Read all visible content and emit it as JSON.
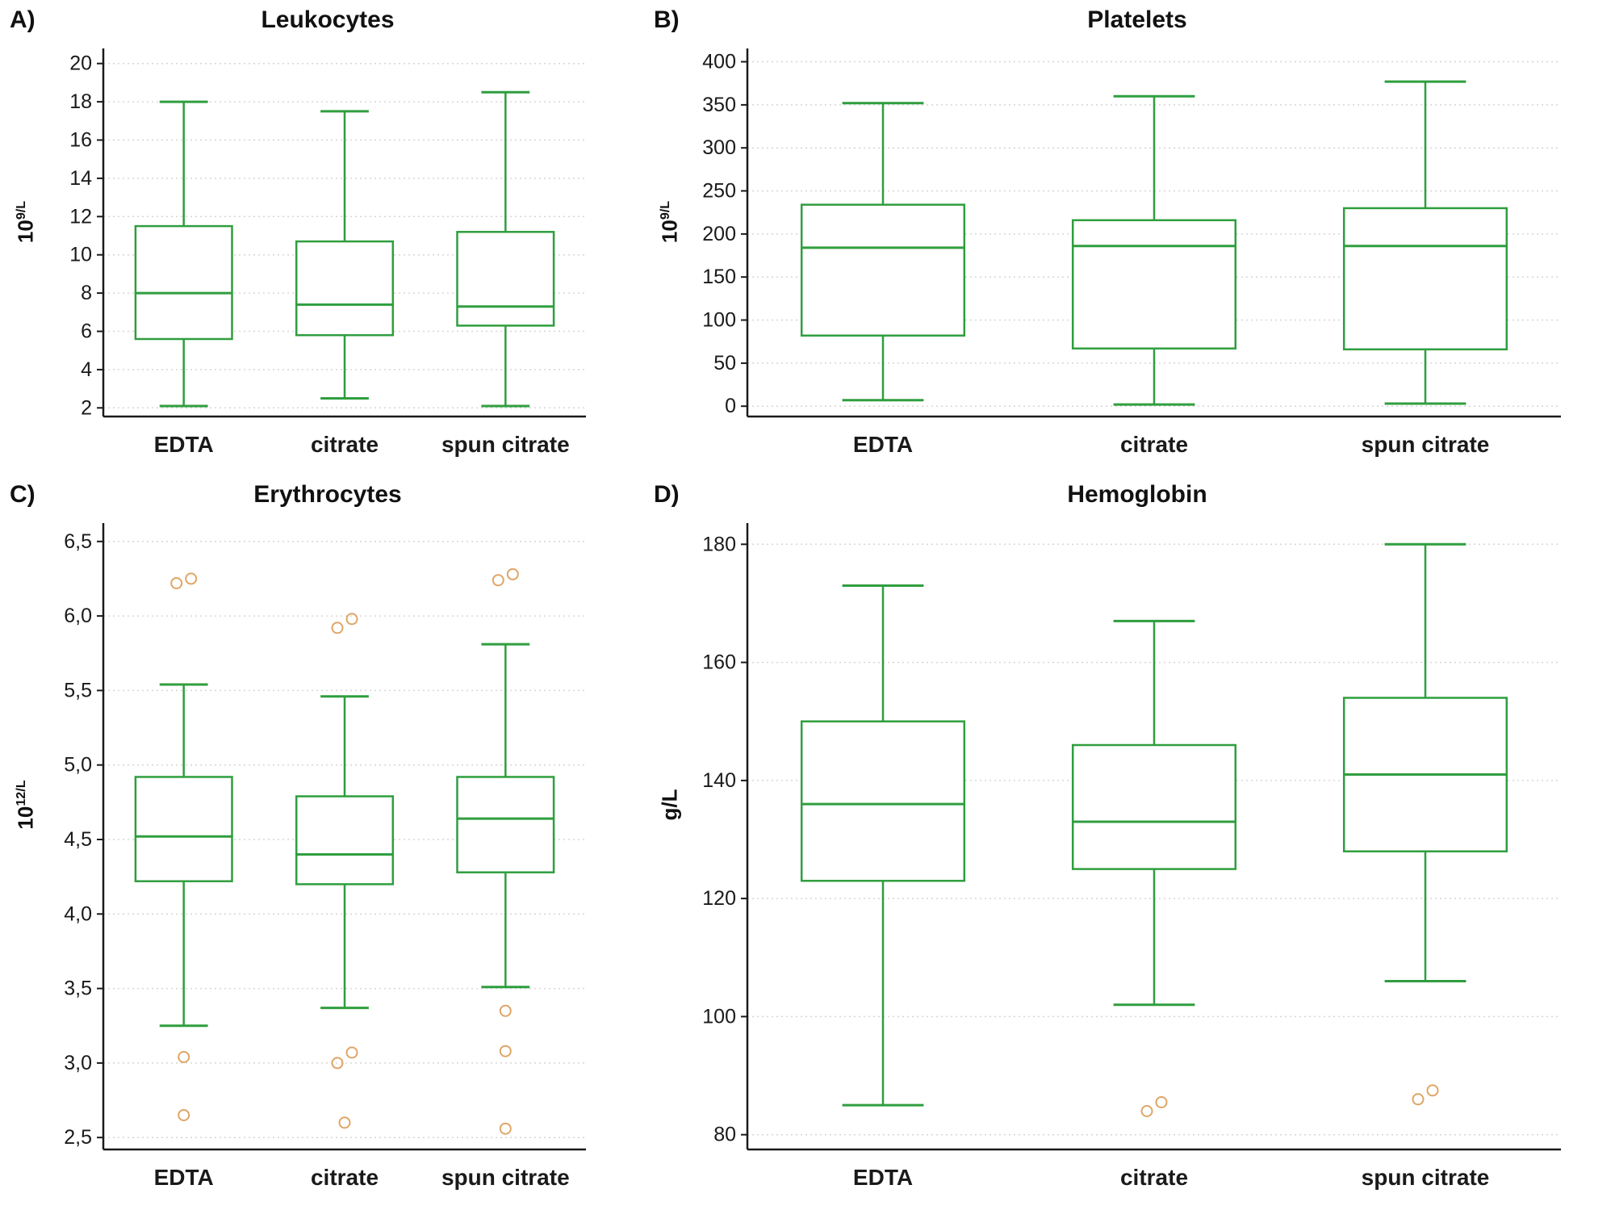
{
  "figure": {
    "background": "#ffffff"
  },
  "style": {
    "box_color": "#2f9e3e",
    "outlier_color": "#dfa566",
    "grid_color": "#d6d6d6",
    "axis_color": "#1a1a1a"
  },
  "chart_data": [
    {
      "type": "box",
      "panel_label": "A)",
      "title": "Leukocytes",
      "ylabel": {
        "base": "10",
        "sup": "9/L"
      },
      "ylim": [
        1.55,
        20.45
      ],
      "grid": true,
      "ticks": [
        {
          "value": 2,
          "label": "2"
        },
        {
          "value": 4,
          "label": "4"
        },
        {
          "value": 6,
          "label": "6"
        },
        {
          "value": 8,
          "label": "8"
        },
        {
          "value": 10,
          "label": "10"
        },
        {
          "value": 12,
          "label": "12"
        },
        {
          "value": 14,
          "label": "14"
        },
        {
          "value": 16,
          "label": "16"
        },
        {
          "value": 18,
          "label": "18"
        },
        {
          "value": 20,
          "label": "20"
        }
      ],
      "categories": [
        "EDTA",
        "citrate",
        "spun citrate"
      ],
      "series": [
        {
          "category": "EDTA",
          "low": 2.1,
          "q1": 5.6,
          "median": 8.0,
          "q3": 11.5,
          "high": 18.0,
          "outliers": []
        },
        {
          "category": "citrate",
          "low": 2.5,
          "q1": 5.8,
          "median": 7.4,
          "q3": 10.7,
          "high": 17.5,
          "outliers": []
        },
        {
          "category": "spun citrate",
          "low": 2.1,
          "q1": 6.3,
          "median": 7.3,
          "q3": 11.2,
          "high": 18.5,
          "outliers": []
        }
      ]
    },
    {
      "type": "box",
      "panel_label": "B)",
      "title": "Platelets",
      "ylabel": {
        "base": "10",
        "sup": "9/L"
      },
      "ylim": [
        -12,
        408
      ],
      "grid": true,
      "ticks": [
        {
          "value": 0,
          "label": "0"
        },
        {
          "value": 50,
          "label": "50"
        },
        {
          "value": 100,
          "label": "100"
        },
        {
          "value": 150,
          "label": "150"
        },
        {
          "value": 200,
          "label": "200"
        },
        {
          "value": 250,
          "label": "250"
        },
        {
          "value": 300,
          "label": "300"
        },
        {
          "value": 350,
          "label": "350"
        },
        {
          "value": 400,
          "label": "400"
        }
      ],
      "categories": [
        "EDTA",
        "citrate",
        "spun citrate"
      ],
      "series": [
        {
          "category": "EDTA",
          "low": 7,
          "q1": 82,
          "median": 184,
          "q3": 234,
          "high": 352,
          "outliers": []
        },
        {
          "category": "citrate",
          "low": 2,
          "q1": 67,
          "median": 186,
          "q3": 216,
          "high": 360,
          "outliers": []
        },
        {
          "category": "spun citrate",
          "low": 3,
          "q1": 66,
          "median": 186,
          "q3": 230,
          "high": 377,
          "outliers": []
        }
      ]
    },
    {
      "type": "box",
      "panel_label": "C)",
      "title": "Erythrocytes",
      "ylabel": {
        "base": "10",
        "sup": "12/L"
      },
      "ylim": [
        2.42,
        6.58
      ],
      "grid": true,
      "ticks": [
        {
          "value": 2.5,
          "label": "2,5"
        },
        {
          "value": 3.0,
          "label": "3,0"
        },
        {
          "value": 3.5,
          "label": "3,5"
        },
        {
          "value": 4.0,
          "label": "4,0"
        },
        {
          "value": 4.5,
          "label": "4,5"
        },
        {
          "value": 5.0,
          "label": "5,0"
        },
        {
          "value": 5.5,
          "label": "5,5"
        },
        {
          "value": 6.0,
          "label": "6,0"
        },
        {
          "value": 6.5,
          "label": "6,5"
        }
      ],
      "categories": [
        "EDTA",
        "citrate",
        "spun citrate"
      ],
      "series": [
        {
          "category": "EDTA",
          "low": 3.25,
          "q1": 4.22,
          "median": 4.52,
          "q3": 4.92,
          "high": 5.54,
          "outliers": [
            6.22,
            6.25,
            3.04,
            2.65
          ]
        },
        {
          "category": "citrate",
          "low": 3.37,
          "q1": 4.2,
          "median": 4.4,
          "q3": 4.79,
          "high": 5.46,
          "outliers": [
            5.92,
            5.98,
            3.07,
            3.0,
            2.6
          ]
        },
        {
          "category": "spun citrate",
          "low": 3.51,
          "q1": 4.28,
          "median": 4.64,
          "q3": 4.92,
          "high": 5.81,
          "outliers": [
            6.24,
            6.28,
            3.35,
            3.08,
            2.56
          ]
        }
      ]
    },
    {
      "type": "box",
      "panel_label": "D)",
      "title": "Hemoglobin",
      "ylabel": {
        "base": "g/L",
        "sup": ""
      },
      "ylim": [
        77.5,
        182.5
      ],
      "grid": true,
      "ticks": [
        {
          "value": 80,
          "label": "80"
        },
        {
          "value": 100,
          "label": "100"
        },
        {
          "value": 120,
          "label": "120"
        },
        {
          "value": 140,
          "label": "140"
        },
        {
          "value": 160,
          "label": "160"
        },
        {
          "value": 180,
          "label": "180"
        }
      ],
      "categories": [
        "EDTA",
        "citrate",
        "spun citrate"
      ],
      "series": [
        {
          "category": "EDTA",
          "low": 85,
          "q1": 123,
          "median": 136,
          "q3": 150,
          "high": 173,
          "outliers": []
        },
        {
          "category": "citrate",
          "low": 102,
          "q1": 125,
          "median": 133,
          "q3": 146,
          "high": 167,
          "outliers": [
            84,
            85.5
          ]
        },
        {
          "category": "spun citrate",
          "low": 106,
          "q1": 128,
          "median": 141,
          "q3": 154,
          "high": 180,
          "outliers": [
            86,
            87.5
          ]
        }
      ]
    }
  ]
}
